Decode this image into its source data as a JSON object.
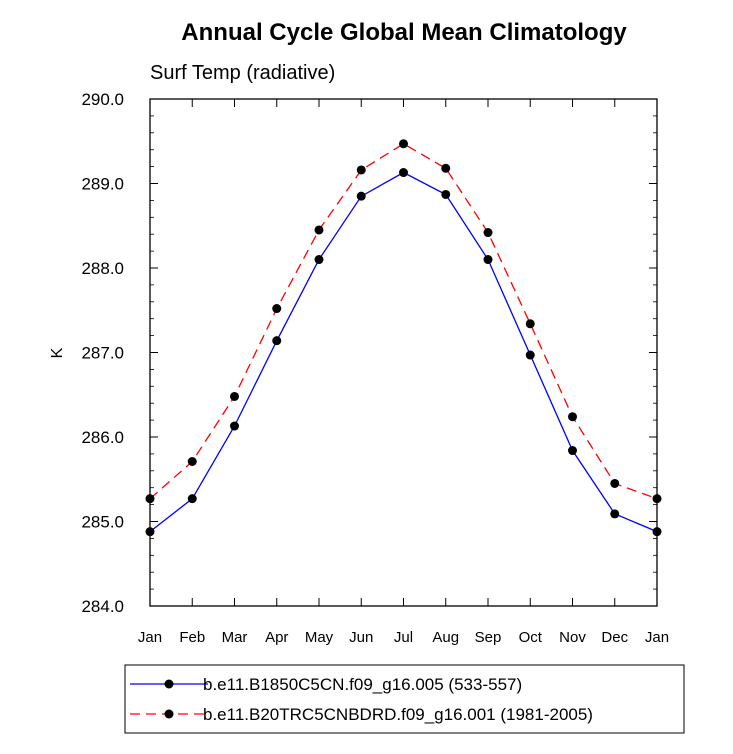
{
  "chart_data": {
    "type": "line",
    "title": "Annual Cycle Global Mean Climatology",
    "subtitle": "Surf Temp (radiative)",
    "ylabel": "K",
    "xlabel": "",
    "categories": [
      "Jan",
      "Feb",
      "Mar",
      "Apr",
      "May",
      "Jun",
      "Jul",
      "Aug",
      "Sep",
      "Oct",
      "Nov",
      "Dec",
      "Jan"
    ],
    "ylim": [
      284.0,
      290.0
    ],
    "yticks": [
      "284.0",
      "285.0",
      "286.0",
      "287.0",
      "288.0",
      "289.0",
      "290.0"
    ],
    "grid": false,
    "legend_position": "bottom",
    "series": [
      {
        "name": "b.e11.B1850C5CN.f09_g16.005 (533-557)",
        "color": "#0000ff",
        "line_style": "solid",
        "values": [
          284.88,
          285.27,
          286.13,
          287.14,
          288.1,
          288.85,
          289.13,
          288.87,
          288.1,
          286.97,
          285.84,
          285.09,
          284.88
        ]
      },
      {
        "name": "b.e11.B20TRC5CNBDRD.f09_g16.001 (1981-2005)",
        "color": "#ff0000",
        "line_style": "dashed",
        "values": [
          285.27,
          285.71,
          286.48,
          287.52,
          288.45,
          289.16,
          289.47,
          289.18,
          288.42,
          287.34,
          286.24,
          285.45,
          285.27
        ]
      }
    ]
  }
}
